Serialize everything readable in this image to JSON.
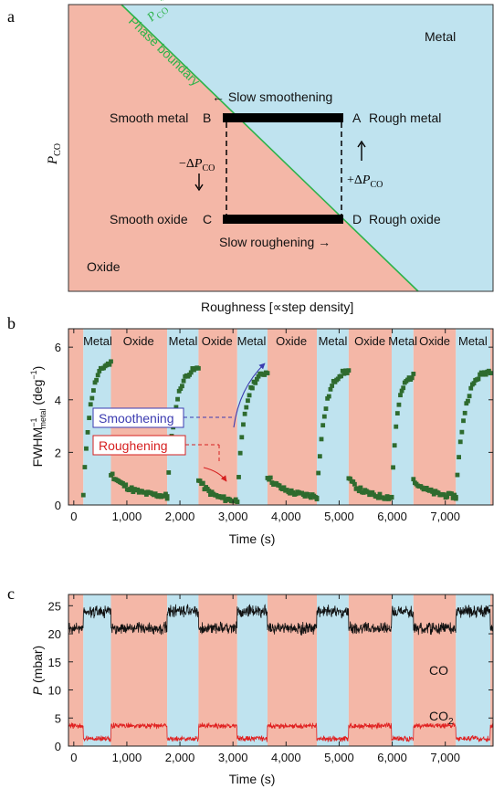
{
  "panel_a": {
    "letter": "a",
    "regions": {
      "metal": "Metal",
      "oxide": "Oxide"
    },
    "phase_boundary": "Phase boundary",
    "pco_star_main": "P",
    "pco_star_sub": "CO",
    "pco_star_sup": "*",
    "ylabel_main": "P",
    "ylabel_sub": "CO",
    "xlabel": "Roughness [∝step density]",
    "slow_smoothening": "← Slow smoothening",
    "slow_roughening": "Slow roughening  →",
    "points": {
      "A": "A",
      "B": "B",
      "C": "C",
      "D": "D",
      "smooth_metal": "Smooth metal",
      "rough_metal": "Rough metal",
      "smooth_oxide": "Smooth oxide",
      "rough_oxide": "Rough oxide"
    },
    "minus_dp": {
      "sign": "−Δ",
      "main": "P",
      "sub": "CO"
    },
    "plus_dp": {
      "sign": "+Δ",
      "main": "P",
      "sub": "CO"
    },
    "colors": {
      "metal": "#bfe3ef",
      "oxide": "#f4b7a7",
      "boundary": "#2db34a",
      "bar": "#000000"
    }
  },
  "phases": {
    "metal_label": "Metal",
    "oxide_label": "Oxide",
    "intervals": [
      {
        "phase": "oxide",
        "start": -100,
        "end": 180
      },
      {
        "phase": "metal",
        "start": 180,
        "end": 700
      },
      {
        "phase": "oxide",
        "start": 700,
        "end": 1760
      },
      {
        "phase": "metal",
        "start": 1760,
        "end": 2350
      },
      {
        "phase": "oxide",
        "start": 2350,
        "end": 3080
      },
      {
        "phase": "metal",
        "start": 3080,
        "end": 3650
      },
      {
        "phase": "oxide",
        "start": 3650,
        "end": 4580
      },
      {
        "phase": "metal",
        "start": 4580,
        "end": 5180
      },
      {
        "phase": "oxide",
        "start": 5180,
        "end": 5990
      },
      {
        "phase": "metal",
        "start": 5990,
        "end": 6400
      },
      {
        "phase": "oxide",
        "start": 6400,
        "end": 7200
      },
      {
        "phase": "metal",
        "start": 7200,
        "end": 7850
      },
      {
        "phase": "oxide",
        "start": 7850,
        "end": 7900
      }
    ],
    "panel_b_label_times": [
      450,
      1220,
      2060,
      2700,
      3350,
      4100,
      4880,
      5580,
      6200,
      6800,
      7520
    ]
  },
  "chart_data": [
    {
      "type": "scatter",
      "panel": "b",
      "letter": "b",
      "xlabel": "Time (s)",
      "ylabel_main": "FWHM",
      "ylabel_sup": "−1",
      "ylabel_sub": "metal",
      "ylabel_unit": " (deg",
      "ylabel_unit_sup": "−1",
      "ylabel_close": ")",
      "xlim": [
        -100,
        7900
      ],
      "ylim": [
        0,
        6.7
      ],
      "xticks": [
        0,
        1000,
        2000,
        3000,
        4000,
        5000,
        6000,
        7000
      ],
      "xtick_labels": [
        "0",
        "1,000",
        "2,000",
        "3,000",
        "4,000",
        "5,000",
        "6,000",
        "7,000"
      ],
      "yticks": [
        0,
        2,
        4,
        6
      ],
      "ytick_labels": [
        "0",
        "2",
        "4",
        "6"
      ],
      "series": [
        {
          "color": "#2e6b2e",
          "segments": [
            {
              "phase": "metal",
              "start": 180,
              "end": 700,
              "from": 0.35,
              "to": 5.4
            },
            {
              "phase": "oxide",
              "start": 700,
              "end": 1760,
              "from": 1.2,
              "to": 0.3
            },
            {
              "phase": "metal",
              "start": 1760,
              "end": 2350,
              "from": 0.3,
              "to": 5.2
            },
            {
              "phase": "oxide",
              "start": 2350,
              "end": 3080,
              "from": 1.0,
              "to": 0.12
            },
            {
              "phase": "metal",
              "start": 3080,
              "end": 3650,
              "from": 0.2,
              "to": 5.05
            },
            {
              "phase": "oxide",
              "start": 3650,
              "end": 4580,
              "from": 1.1,
              "to": 0.3
            },
            {
              "phase": "metal",
              "start": 4580,
              "end": 5180,
              "from": 0.3,
              "to": 5.1
            },
            {
              "phase": "oxide",
              "start": 5180,
              "end": 5990,
              "from": 1.0,
              "to": 0.25
            },
            {
              "phase": "metal",
              "start": 5990,
              "end": 6400,
              "from": 0.3,
              "to": 4.9
            },
            {
              "phase": "oxide",
              "start": 6400,
              "end": 7200,
              "from": 1.0,
              "to": 0.3
            },
            {
              "phase": "metal",
              "start": 7200,
              "end": 7850,
              "from": 0.3,
              "to": 5.1
            }
          ]
        }
      ],
      "annotations": {
        "smoothening": "Smoothening",
        "roughening": "Roughening",
        "smoothening_color": "#3b3bb0",
        "roughening_color": "#d62020"
      }
    },
    {
      "type": "line",
      "panel": "c",
      "letter": "c",
      "xlabel": "Time (s)",
      "ylabel_main": "P",
      "ylabel_unit": " (mbar)",
      "xlim": [
        -100,
        7900
      ],
      "ylim": [
        0,
        27
      ],
      "xticks": [
        0,
        1000,
        2000,
        3000,
        4000,
        5000,
        6000,
        7000
      ],
      "xtick_labels": [
        "0",
        "1,000",
        "2,000",
        "3,000",
        "4,000",
        "5,000",
        "6,000",
        "7,000"
      ],
      "yticks": [
        0,
        5,
        10,
        15,
        20,
        25
      ],
      "ytick_labels": [
        "0",
        "5",
        "10",
        "15",
        "20",
        "25"
      ],
      "series": [
        {
          "name": "CO",
          "color": "#111111",
          "metal_level": 24.0,
          "oxide_level": 21.0,
          "noise": 1.3
        },
        {
          "name": "CO₂",
          "color": "#e02020",
          "metal_level": 1.3,
          "oxide_level": 3.6,
          "noise": 0.6
        }
      ],
      "series_labels": {
        "co": "CO",
        "co2_main": "CO",
        "co2_sub": "2"
      }
    }
  ]
}
